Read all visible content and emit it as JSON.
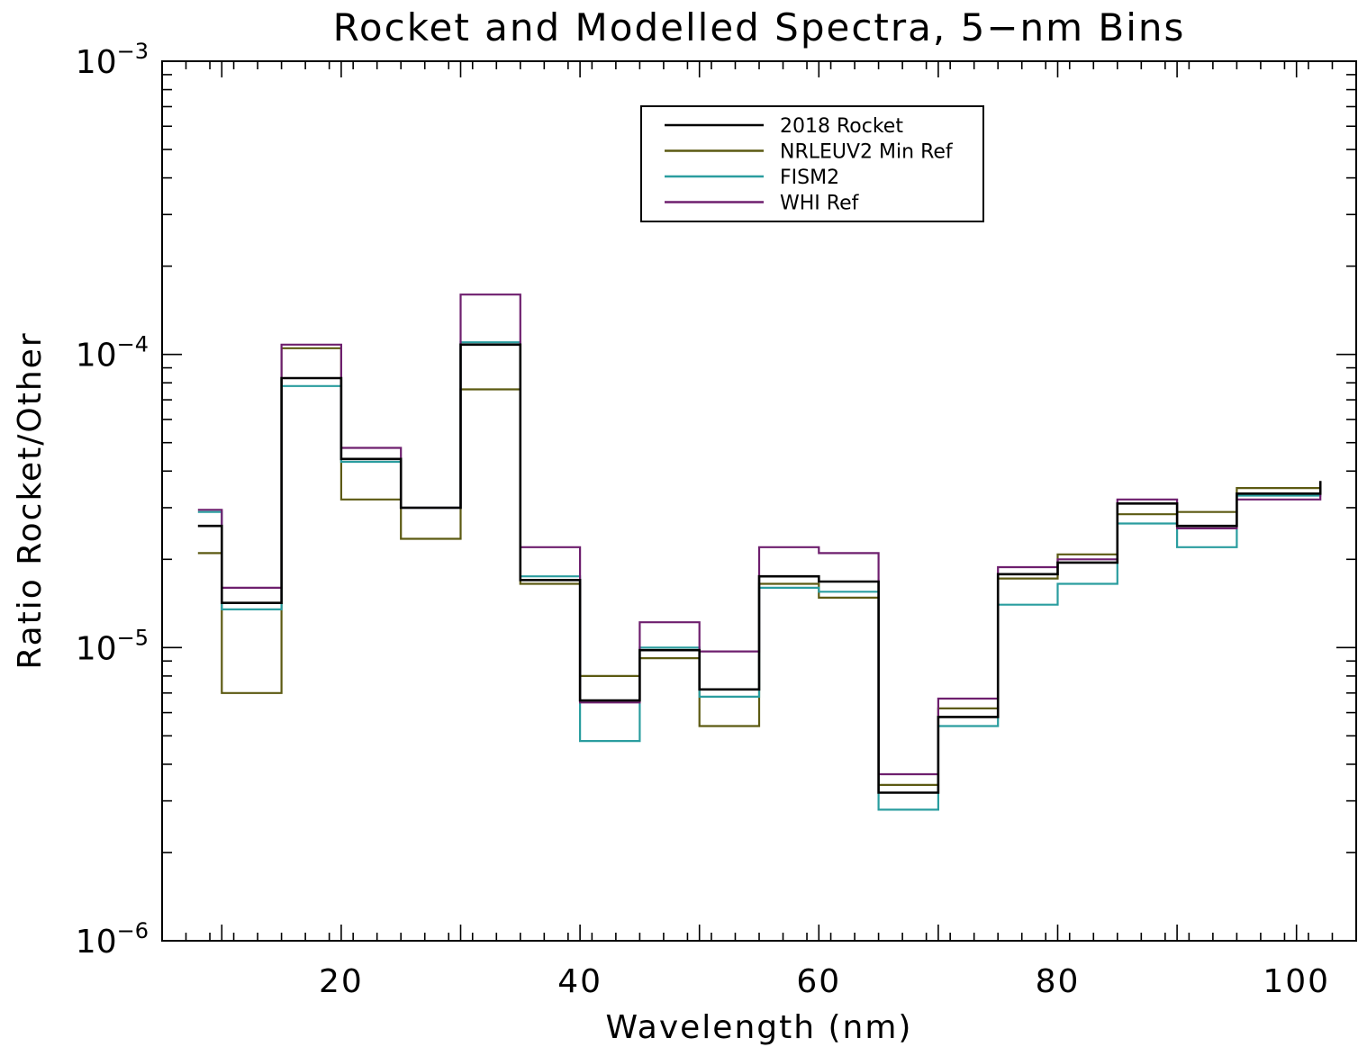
{
  "chart_data": {
    "type": "line",
    "step": true,
    "title": "Rocket and Modelled Spectra, 5−nm Bins",
    "xlabel": "Wavelength (nm)",
    "ylabel": "Ratio Rocket/Other",
    "xlim": [
      5,
      105
    ],
    "ylim": [
      1e-06,
      0.001
    ],
    "yscale": "log",
    "x_ticks": [
      20,
      40,
      60,
      80,
      100
    ],
    "y_tick_labels": [
      {
        "base": "10",
        "exp": "−3",
        "value": 0.001
      },
      {
        "base": "10",
        "exp": "−4",
        "value": 0.0001
      },
      {
        "base": "10",
        "exp": "−5",
        "value": 1e-05
      },
      {
        "base": "10",
        "exp": "−6",
        "value": 1e-06
      }
    ],
    "grid": false,
    "legend_position": "top-center",
    "bin_edges": [
      8,
      10,
      15,
      20,
      25,
      30,
      35,
      40,
      45,
      50,
      55,
      60,
      65,
      70,
      75,
      80,
      85,
      90,
      95,
      102
    ],
    "series": [
      {
        "name": "2018 Rocket",
        "color": "#000000",
        "values": [
          2.6e-05,
          1.42e-05,
          8.3e-05,
          4.4e-05,
          3e-05,
          0.000108,
          1.7e-05,
          6.6e-06,
          9.8e-06,
          7.2e-06,
          1.75e-05,
          1.68e-05,
          3.2e-06,
          5.8e-06,
          1.78e-05,
          1.95e-05,
          3.1e-05,
          2.6e-05,
          3.35e-05,
          3.7e-05
        ]
      },
      {
        "name": "NRLEUV2 Min Ref",
        "color": "#5c5a12",
        "values": [
          2.1e-05,
          7e-06,
          0.000105,
          3.2e-05,
          2.35e-05,
          7.6e-05,
          1.65e-05,
          8e-06,
          9.2e-06,
          5.4e-06,
          1.65e-05,
          1.48e-05,
          3.4e-06,
          6.2e-06,
          1.72e-05,
          2.08e-05,
          2.85e-05,
          2.9e-05,
          3.5e-05,
          3.6e-05
        ]
      },
      {
        "name": "FISM2",
        "color": "#2a9d9f",
        "values": [
          2.9e-05,
          1.35e-05,
          7.8e-05,
          4.3e-05,
          3e-05,
          0.00011,
          1.75e-05,
          4.8e-06,
          1e-05,
          6.8e-06,
          1.6e-05,
          1.55e-05,
          2.8e-06,
          5.4e-06,
          1.4e-05,
          1.65e-05,
          2.65e-05,
          2.2e-05,
          3.3e-05,
          3.4e-05
        ]
      },
      {
        "name": "WHI Ref",
        "color": "#6e1f6e",
        "values": [
          2.95e-05,
          1.6e-05,
          0.000108,
          4.8e-05,
          3e-05,
          0.00016,
          2.2e-05,
          6.5e-06,
          1.22e-05,
          9.7e-06,
          2.2e-05,
          2.1e-05,
          3.7e-06,
          6.7e-06,
          1.88e-05,
          2e-05,
          3.2e-05,
          2.55e-05,
          3.2e-05,
          3.6e-05
        ]
      }
    ]
  }
}
